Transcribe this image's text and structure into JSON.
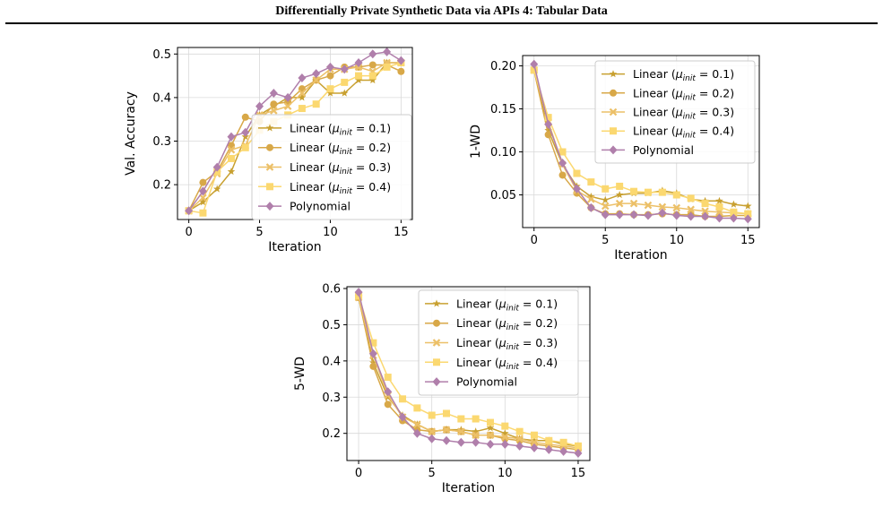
{
  "header": {
    "title": "Differentially Private Synthetic Data via APIs 4: Tabular Data"
  },
  "series_styles": [
    {
      "color": "#c8a030",
      "marker": "star"
    },
    {
      "color": "#d8a848",
      "marker": "circle"
    },
    {
      "color": "#ecc068",
      "marker": "x"
    },
    {
      "color": "#fbd870",
      "marker": "square"
    },
    {
      "color": "#b07fab",
      "marker": "diamond"
    }
  ],
  "chart_data": [
    {
      "type": "line",
      "xlabel": "Iteration",
      "ylabel": "Val. Accuracy",
      "xlim": [
        -0.8,
        15.8
      ],
      "ylim": [
        0.12,
        0.515
      ],
      "xticks": [
        0,
        5,
        10,
        15
      ],
      "yticks": [
        0.2,
        0.3,
        0.4,
        0.5
      ],
      "grid": true,
      "legend_position": "lower-right",
      "x": [
        0,
        1,
        2,
        3,
        4,
        5,
        6,
        7,
        8,
        9,
        10,
        11,
        12,
        13,
        14,
        15
      ],
      "series": [
        {
          "name": "Linear (μinit = 0.1)",
          "values": [
            0.14,
            0.16,
            0.19,
            0.23,
            0.31,
            0.36,
            0.38,
            0.4,
            0.4,
            0.44,
            0.41,
            0.41,
            0.44,
            0.44,
            0.48,
            0.48
          ]
        },
        {
          "name": "Linear (μinit = 0.2)",
          "values": [
            0.14,
            0.205,
            0.23,
            0.29,
            0.355,
            0.345,
            0.385,
            0.39,
            0.42,
            0.44,
            0.45,
            0.47,
            0.47,
            0.475,
            0.475,
            0.46
          ]
        },
        {
          "name": "Linear (μinit = 0.3)",
          "values": [
            0.14,
            0.17,
            0.225,
            0.28,
            0.29,
            0.36,
            0.37,
            0.38,
            0.41,
            0.44,
            0.465,
            0.465,
            0.47,
            0.46,
            0.48,
            0.48
          ]
        },
        {
          "name": "Linear (μinit = 0.4)",
          "values": [
            0.14,
            0.135,
            0.23,
            0.26,
            0.285,
            0.325,
            0.345,
            0.36,
            0.375,
            0.385,
            0.42,
            0.435,
            0.45,
            0.45,
            0.47,
            0.48
          ]
        },
        {
          "name": "Polynomial",
          "values": [
            0.14,
            0.185,
            0.24,
            0.31,
            0.32,
            0.38,
            0.41,
            0.4,
            0.445,
            0.455,
            0.47,
            0.465,
            0.48,
            0.5,
            0.505,
            0.485
          ]
        }
      ]
    },
    {
      "type": "line",
      "xlabel": "Iteration",
      "ylabel": "1-WD",
      "xlim": [
        -0.8,
        15.8
      ],
      "ylim": [
        0.012,
        0.212
      ],
      "xticks": [
        0,
        5,
        10,
        15
      ],
      "yticks": [
        0.05,
        0.1,
        0.15,
        0.2
      ],
      "ytick_labels": [
        "0.05",
        "0.10",
        "0.15",
        "0.20"
      ],
      "grid": true,
      "legend_position": "upper-right",
      "x": [
        0,
        1,
        2,
        3,
        4,
        5,
        6,
        7,
        8,
        9,
        10,
        11,
        12,
        13,
        14,
        15
      ],
      "series": [
        {
          "name": "Linear (μinit = 0.1)",
          "values": [
            0.195,
            0.125,
            0.085,
            0.06,
            0.048,
            0.044,
            0.05,
            0.052,
            0.052,
            0.055,
            0.052,
            0.045,
            0.043,
            0.043,
            0.039,
            0.037
          ]
        },
        {
          "name": "Linear (μinit = 0.2)",
          "values": [
            0.195,
            0.12,
            0.073,
            0.052,
            0.035,
            0.028,
            0.028,
            0.027,
            0.027,
            0.028,
            0.027,
            0.027,
            0.025,
            0.025,
            0.026,
            0.026
          ]
        },
        {
          "name": "Linear (μinit = 0.3)",
          "values": [
            0.195,
            0.135,
            0.085,
            0.055,
            0.045,
            0.037,
            0.04,
            0.04,
            0.038,
            0.036,
            0.035,
            0.033,
            0.031,
            0.03,
            0.029,
            0.028
          ]
        },
        {
          "name": "Linear (μinit = 0.4)",
          "values": [
            0.195,
            0.14,
            0.1,
            0.075,
            0.065,
            0.057,
            0.06,
            0.054,
            0.053,
            0.053,
            0.05,
            0.046,
            0.04,
            0.036,
            0.03,
            0.028
          ]
        },
        {
          "name": "Polynomial",
          "values": [
            0.202,
            0.132,
            0.087,
            0.057,
            0.035,
            0.027,
            0.027,
            0.027,
            0.026,
            0.029,
            0.026,
            0.025,
            0.025,
            0.023,
            0.023,
            0.022
          ]
        }
      ]
    },
    {
      "type": "line",
      "xlabel": "Iteration",
      "ylabel": "5-WD",
      "xlim": [
        -0.8,
        15.8
      ],
      "ylim": [
        0.125,
        0.605
      ],
      "xticks": [
        0,
        5,
        10,
        15
      ],
      "yticks": [
        0.2,
        0.3,
        0.4,
        0.5,
        0.6
      ],
      "grid": true,
      "legend_position": "upper-right",
      "x": [
        0,
        1,
        2,
        3,
        4,
        5,
        6,
        7,
        8,
        9,
        10,
        11,
        12,
        13,
        14,
        15
      ],
      "series": [
        {
          "name": "Linear (μinit = 0.1)",
          "values": [
            0.575,
            0.395,
            0.3,
            0.25,
            0.225,
            0.205,
            0.21,
            0.21,
            0.205,
            0.215,
            0.2,
            0.185,
            0.18,
            0.18,
            0.17,
            0.165
          ]
        },
        {
          "name": "Linear (μinit = 0.2)",
          "values": [
            0.575,
            0.385,
            0.28,
            0.235,
            0.21,
            0.205,
            0.21,
            0.205,
            0.195,
            0.195,
            0.185,
            0.18,
            0.17,
            0.165,
            0.16,
            0.155
          ]
        },
        {
          "name": "Linear (μinit = 0.3)",
          "values": [
            0.575,
            0.415,
            0.305,
            0.245,
            0.225,
            0.205,
            0.21,
            0.205,
            0.195,
            0.195,
            0.19,
            0.185,
            0.175,
            0.17,
            0.165,
            0.16
          ]
        },
        {
          "name": "Linear (μinit = 0.4)",
          "values": [
            0.58,
            0.45,
            0.355,
            0.295,
            0.27,
            0.25,
            0.255,
            0.24,
            0.24,
            0.23,
            0.22,
            0.205,
            0.195,
            0.18,
            0.175,
            0.165
          ]
        },
        {
          "name": "Polynomial",
          "values": [
            0.59,
            0.42,
            0.315,
            0.245,
            0.2,
            0.185,
            0.18,
            0.175,
            0.175,
            0.17,
            0.17,
            0.165,
            0.16,
            0.155,
            0.15,
            0.145
          ]
        }
      ]
    }
  ]
}
